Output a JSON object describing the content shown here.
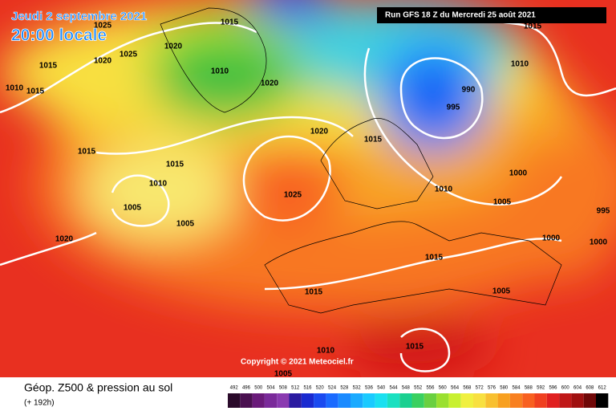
{
  "header": {
    "date": "Jeudi 2 septembre 2021",
    "time": "20:00 locale",
    "run": "Run GFS 18 Z du Mercredi 25 août 2021"
  },
  "copyright": "Copyright © 2021 Meteociel.fr",
  "legend": {
    "title": "Géop. Z500 & pression au sol",
    "lead": "(+ 192h)",
    "values": [
      492,
      496,
      500,
      504,
      508,
      512,
      516,
      520,
      524,
      528,
      532,
      536,
      540,
      544,
      548,
      552,
      556,
      560,
      564,
      568,
      572,
      576,
      580,
      584,
      588,
      592,
      596,
      600,
      604,
      608,
      612
    ],
    "colors": [
      "#2a0a2a",
      "#4a1050",
      "#6a1a7a",
      "#7a2a9a",
      "#8a3ab0",
      "#2a1aa0",
      "#1a2ad0",
      "#1a4af0",
      "#1a6aff",
      "#1a8aff",
      "#1aaaff",
      "#1acaff",
      "#1ae0f0",
      "#1ae0c0",
      "#1ad090",
      "#3ad060",
      "#6ad040",
      "#9ae030",
      "#c8f030",
      "#f0f040",
      "#f8e040",
      "#f8c030",
      "#f8a020",
      "#f88020",
      "#f86020",
      "#f04020",
      "#e02020",
      "#c01818",
      "#a01010",
      "#700808",
      "#000000"
    ]
  },
  "isobars": [
    1025,
    1015,
    1015,
    1020,
    1025,
    1020,
    1010,
    1020,
    1010,
    1015,
    1015,
    1015,
    1010,
    1005,
    1005,
    1020,
    1020,
    1015,
    1025,
    990,
    995,
    1010,
    1005,
    1000,
    1015,
    1010,
    995,
    1000,
    1000,
    1015,
    1015,
    1005,
    1010,
    1015,
    1005
  ]
}
